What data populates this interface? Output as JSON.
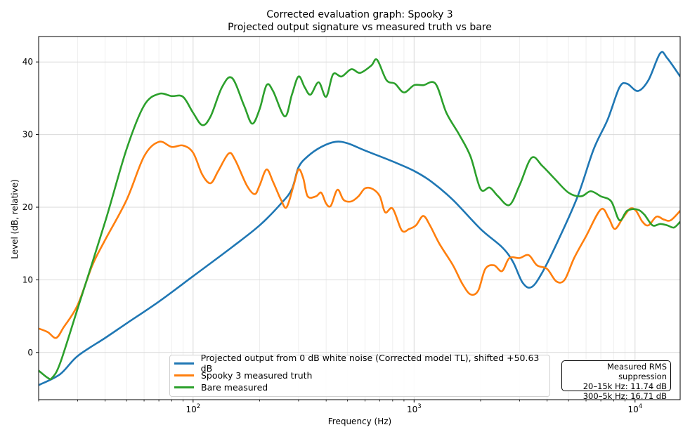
{
  "chart_data": {
    "type": "line",
    "title": "Corrected evaluation graph: Spooky 3",
    "subtitle": "Projected output signature vs measured truth vs bare",
    "xlabel": "Frequency (Hz)",
    "ylabel": "Level (dB, relative)",
    "x_scale": "log",
    "xlim": [
      20,
      16000
    ],
    "ylim": [
      -6.5,
      43.5
    ],
    "x_ticks": [
      100,
      1000,
      10000
    ],
    "x_tick_labels": [
      "10^2",
      "10^3",
      "10^4"
    ],
    "y_ticks": [
      0,
      10,
      20,
      30,
      40
    ],
    "y_tick_labels": [
      "0",
      "10",
      "20",
      "30",
      "40"
    ],
    "grid": true,
    "legend_position": "lower center",
    "series": [
      {
        "name": "Projected output from 0 dB white noise (Corrected model TL), shifted +50.63 dB",
        "color": "#1f77b4",
        "points": [
          [
            20,
            -4.5
          ],
          [
            25,
            -3.0
          ],
          [
            30,
            -0.5
          ],
          [
            40,
            2.0
          ],
          [
            50,
            4.0
          ],
          [
            70,
            7.0
          ],
          [
            100,
            10.5
          ],
          [
            150,
            14.5
          ],
          [
            200,
            17.5
          ],
          [
            250,
            20.5
          ],
          [
            280,
            22.5
          ],
          [
            300,
            25.5
          ],
          [
            330,
            27.0
          ],
          [
            380,
            28.3
          ],
          [
            440,
            29.0
          ],
          [
            500,
            28.8
          ],
          [
            600,
            27.8
          ],
          [
            800,
            26.3
          ],
          [
            1000,
            25.0
          ],
          [
            1200,
            23.5
          ],
          [
            1500,
            21.0
          ],
          [
            2000,
            17.0
          ],
          [
            2500,
            14.5
          ],
          [
            2800,
            12.5
          ],
          [
            3100,
            9.6
          ],
          [
            3400,
            9.0
          ],
          [
            3800,
            11.0
          ],
          [
            4500,
            15.5
          ],
          [
            5500,
            21.5
          ],
          [
            6500,
            28.0
          ],
          [
            7500,
            32.0
          ],
          [
            8500,
            36.5
          ],
          [
            9200,
            37.0
          ],
          [
            10300,
            36.0
          ],
          [
            11500,
            37.5
          ],
          [
            13000,
            41.2
          ],
          [
            14000,
            40.5
          ],
          [
            16000,
            38.0
          ]
        ]
      },
      {
        "name": "Spooky 3 measured truth",
        "color": "#ff7f0e",
        "points": [
          [
            20,
            3.3
          ],
          [
            22,
            2.8
          ],
          [
            24,
            2.0
          ],
          [
            26,
            3.5
          ],
          [
            30,
            6.5
          ],
          [
            35,
            12.0
          ],
          [
            40,
            15.5
          ],
          [
            50,
            21.0
          ],
          [
            60,
            27.0
          ],
          [
            70,
            29.0
          ],
          [
            80,
            28.3
          ],
          [
            90,
            28.5
          ],
          [
            100,
            27.5
          ],
          [
            110,
            24.5
          ],
          [
            120,
            23.3
          ],
          [
            130,
            25.0
          ],
          [
            145,
            27.4
          ],
          [
            155,
            26.5
          ],
          [
            175,
            23.0
          ],
          [
            190,
            21.8
          ],
          [
            200,
            23.0
          ],
          [
            215,
            25.2
          ],
          [
            230,
            23.5
          ],
          [
            250,
            21.0
          ],
          [
            265,
            20.0
          ],
          [
            285,
            23.0
          ],
          [
            300,
            25.2
          ],
          [
            315,
            24.0
          ],
          [
            330,
            21.5
          ],
          [
            360,
            21.5
          ],
          [
            380,
            22.0
          ],
          [
            400,
            20.5
          ],
          [
            420,
            20.2
          ],
          [
            450,
            22.4
          ],
          [
            480,
            21.0
          ],
          [
            520,
            20.8
          ],
          [
            560,
            21.5
          ],
          [
            600,
            22.6
          ],
          [
            650,
            22.5
          ],
          [
            700,
            21.5
          ],
          [
            740,
            19.3
          ],
          [
            800,
            19.8
          ],
          [
            880,
            16.8
          ],
          [
            950,
            17.0
          ],
          [
            1020,
            17.5
          ],
          [
            1100,
            18.8
          ],
          [
            1180,
            17.5
          ],
          [
            1300,
            15.0
          ],
          [
            1500,
            12.0
          ],
          [
            1650,
            9.5
          ],
          [
            1800,
            8.0
          ],
          [
            1950,
            8.5
          ],
          [
            2100,
            11.5
          ],
          [
            2300,
            12.0
          ],
          [
            2500,
            11.2
          ],
          [
            2700,
            13.0
          ],
          [
            3000,
            13.0
          ],
          [
            3300,
            13.4
          ],
          [
            3600,
            12.0
          ],
          [
            4000,
            11.5
          ],
          [
            4400,
            9.8
          ],
          [
            4800,
            10.0
          ],
          [
            5300,
            13.0
          ],
          [
            6000,
            16.0
          ],
          [
            7000,
            19.7
          ],
          [
            7600,
            18.5
          ],
          [
            8100,
            17.0
          ],
          [
            8800,
            18.5
          ],
          [
            9500,
            19.8
          ],
          [
            10100,
            19.5
          ],
          [
            10800,
            18.0
          ],
          [
            11500,
            17.5
          ],
          [
            12500,
            18.7
          ],
          [
            13500,
            18.3
          ],
          [
            14500,
            18.2
          ],
          [
            16000,
            19.5
          ]
        ]
      },
      {
        "name": "Bare measured",
        "color": "#2ca02c",
        "points": [
          [
            20,
            -2.5
          ],
          [
            22,
            -3.5
          ],
          [
            23,
            -3.5
          ],
          [
            25,
            -1.5
          ],
          [
            30,
            6.0
          ],
          [
            40,
            18.0
          ],
          [
            50,
            28.0
          ],
          [
            60,
            34.0
          ],
          [
            70,
            35.6
          ],
          [
            80,
            35.3
          ],
          [
            90,
            35.2
          ],
          [
            100,
            33.0
          ],
          [
            110,
            31.3
          ],
          [
            120,
            32.5
          ],
          [
            135,
            36.5
          ],
          [
            150,
            37.8
          ],
          [
            170,
            34.0
          ],
          [
            185,
            31.5
          ],
          [
            200,
            33.5
          ],
          [
            215,
            36.8
          ],
          [
            230,
            36.0
          ],
          [
            260,
            32.5
          ],
          [
            280,
            35.5
          ],
          [
            300,
            38.0
          ],
          [
            320,
            36.5
          ],
          [
            340,
            35.5
          ],
          [
            370,
            37.2
          ],
          [
            400,
            35.2
          ],
          [
            430,
            38.3
          ],
          [
            470,
            38.0
          ],
          [
            520,
            39.0
          ],
          [
            570,
            38.5
          ],
          [
            640,
            39.5
          ],
          [
            680,
            40.3
          ],
          [
            750,
            37.5
          ],
          [
            820,
            37.0
          ],
          [
            900,
            35.8
          ],
          [
            1000,
            36.8
          ],
          [
            1100,
            36.8
          ],
          [
            1250,
            37.0
          ],
          [
            1400,
            33.0
          ],
          [
            1600,
            30.0
          ],
          [
            1800,
            27.0
          ],
          [
            2000,
            22.5
          ],
          [
            2200,
            22.7
          ],
          [
            2400,
            21.5
          ],
          [
            2700,
            20.3
          ],
          [
            3000,
            23.0
          ],
          [
            3400,
            26.8
          ],
          [
            3800,
            25.7
          ],
          [
            4300,
            24.0
          ],
          [
            5000,
            22.0
          ],
          [
            5700,
            21.5
          ],
          [
            6300,
            22.2
          ],
          [
            7000,
            21.5
          ],
          [
            7800,
            20.8
          ],
          [
            8500,
            18.2
          ],
          [
            9200,
            19.5
          ],
          [
            10200,
            19.7
          ],
          [
            11000,
            19.0
          ],
          [
            12000,
            17.5
          ],
          [
            13000,
            17.7
          ],
          [
            14000,
            17.5
          ],
          [
            15000,
            17.2
          ],
          [
            16000,
            18.0
          ]
        ]
      }
    ],
    "annotation": {
      "lines": [
        "Measured RMS suppression",
        "20–15k Hz: 11.74 dB",
        "300–5k Hz: 16.71 dB"
      ]
    }
  }
}
